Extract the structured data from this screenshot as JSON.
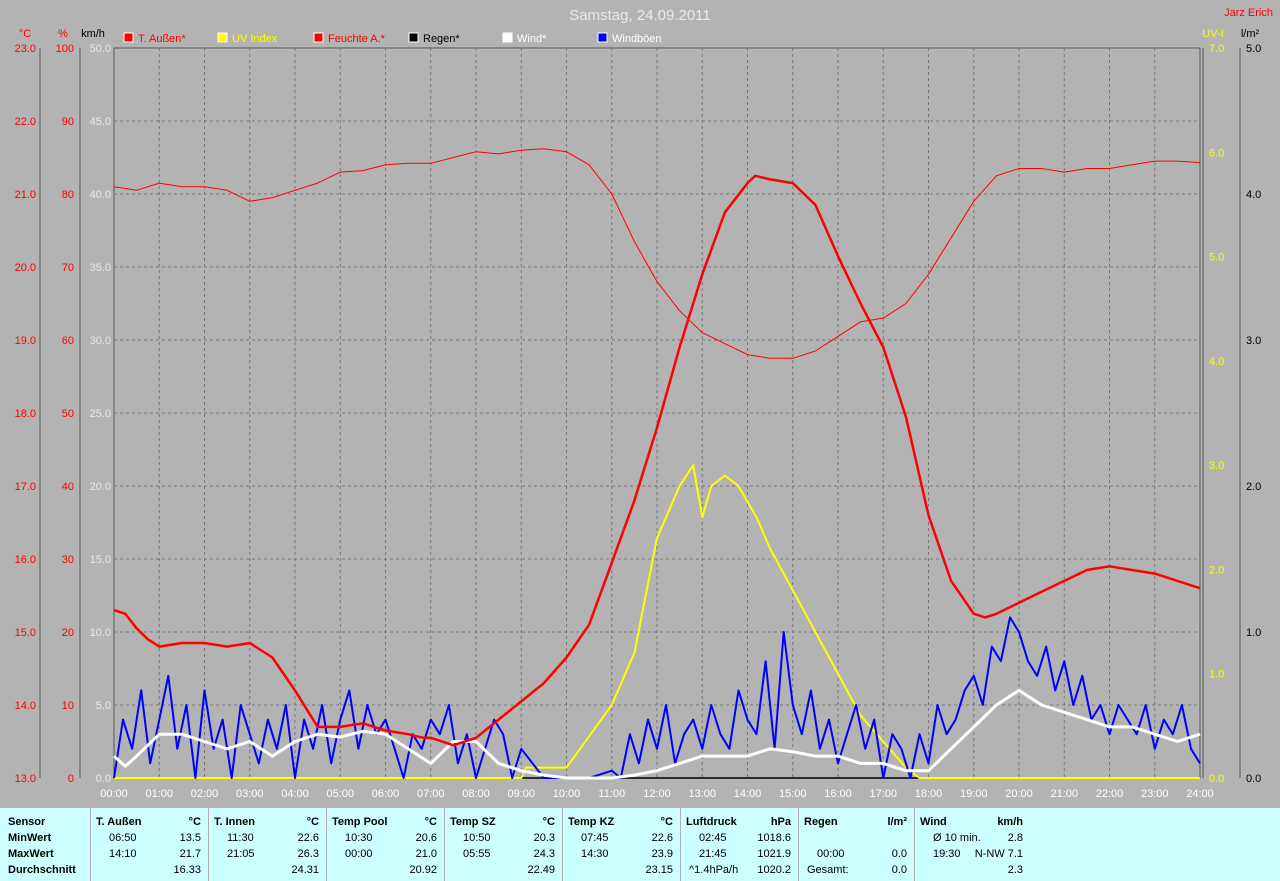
{
  "title": "Samstag, 24.09.2011",
  "author": "Jarz Erich",
  "colors": {
    "background": "#b3b3b3",
    "grid": "#777777",
    "temp": "#ff0000",
    "uv": "#ffff00",
    "rain": "#000000",
    "wind": "#ffffff",
    "gust": "#0000ff",
    "stats_bg": "#ccffff"
  },
  "axes": {
    "temp_unit": "°C",
    "humidity_unit": "%",
    "wind_unit": "km/h",
    "uv_unit": "UV-I",
    "rain_unit": "l/m²",
    "temp_ticks": [
      "23.0",
      "22.0",
      "21.0",
      "20.0",
      "19.0",
      "18.0",
      "17.0",
      "16.0",
      "15.0",
      "14.0",
      "13.0"
    ],
    "humidity_ticks": [
      "100",
      "90",
      "80",
      "70",
      "60",
      "50",
      "40",
      "30",
      "20",
      "10",
      "0"
    ],
    "wind_ticks": [
      "50.0",
      "45.0",
      "40.0",
      "35.0",
      "30.0",
      "25.0",
      "20.0",
      "15.0",
      "10.0",
      "5.0",
      "0.0"
    ],
    "uv_ticks": [
      "7.0",
      "6.0",
      "5.0",
      "4.0",
      "3.0",
      "2.0",
      "1.0",
      "0.0"
    ],
    "rain_ticks": [
      "5.0",
      "4.0",
      "3.0",
      "2.0",
      "1.0",
      "0.0"
    ],
    "time_ticks": [
      "00:00",
      "01:00",
      "02:00",
      "03:00",
      "04:00",
      "05:00",
      "06:00",
      "07:00",
      "08:00",
      "09:00",
      "10:00",
      "11:00",
      "12:00",
      "13:00",
      "14:00",
      "15:00",
      "16:00",
      "17:00",
      "18:00",
      "19:00",
      "20:00",
      "21:00",
      "22:00",
      "23:00",
      "24:00"
    ]
  },
  "legend": [
    {
      "label": "T. Außen*",
      "color": "#ff0000",
      "text_color": "#ff0000"
    },
    {
      "label": "UV Index",
      "color": "#ffff00",
      "text_color": "#ffff00"
    },
    {
      "label": "Feuchte A.*",
      "color": "#ff0000",
      "text_color": "#ff0000"
    },
    {
      "label": "Regen*",
      "color": "#000000",
      "text_color": "#000000"
    },
    {
      "label": "Wind*",
      "color": "#ffffff",
      "text_color": "#ffffff"
    },
    {
      "label": "Windböen",
      "color": "#0000ff",
      "text_color": "#ffffff"
    }
  ],
  "chart_data": {
    "type": "line",
    "title": "Samstag, 24.09.2011",
    "xlim": [
      0,
      24
    ],
    "grid": true,
    "legend_position": "top",
    "series": [
      {
        "name": "T. Außen*",
        "axis": "temp",
        "ylim": [
          13,
          23
        ],
        "x": [
          0,
          0.25,
          0.5,
          0.75,
          1,
          1.5,
          2,
          2.5,
          3,
          3.5,
          4,
          4.25,
          4.5,
          5,
          5.5,
          6,
          6.5,
          6.83,
          7,
          7.5,
          8,
          8.5,
          9,
          9.5,
          10,
          10.5,
          11,
          11.5,
          12,
          12.5,
          13,
          13.5,
          14,
          14.17,
          14.5,
          15,
          15.5,
          16,
          16.5,
          17,
          17.5,
          18,
          18.5,
          19,
          19.25,
          19.5,
          20,
          20.5,
          21,
          21.5,
          22,
          22.5,
          23,
          23.5,
          24
        ],
        "y": [
          15.3,
          15.25,
          15.05,
          14.9,
          14.8,
          14.85,
          14.85,
          14.8,
          14.85,
          14.65,
          14.2,
          13.95,
          13.7,
          13.7,
          13.75,
          13.65,
          13.6,
          13.55,
          13.55,
          13.45,
          13.55,
          13.8,
          14.05,
          14.3,
          14.65,
          15.1,
          15.95,
          16.8,
          17.8,
          18.9,
          19.9,
          20.75,
          21.15,
          21.25,
          21.2,
          21.15,
          20.85,
          20.15,
          19.5,
          18.9,
          17.95,
          16.6,
          15.7,
          15.25,
          15.2,
          15.25,
          15.4,
          15.55,
          15.7,
          15.85,
          15.9,
          15.85,
          15.8,
          15.7,
          15.6
        ]
      },
      {
        "name": "Feuchte A.*",
        "axis": "humidity",
        "ylim": [
          0,
          100
        ],
        "x": [
          0,
          0.5,
          1,
          1.5,
          2,
          2.5,
          3,
          3.5,
          4,
          4.5,
          5,
          5.5,
          6,
          6.5,
          7,
          7.5,
          8,
          8.5,
          9,
          9.5,
          10,
          10.5,
          11,
          11.5,
          12,
          12.5,
          13,
          13.5,
          14,
          14.5,
          15,
          15.5,
          16,
          16.5,
          17,
          17.5,
          18,
          18.5,
          19,
          19.5,
          20,
          20.5,
          21,
          21.5,
          22,
          22.5,
          23,
          23.5,
          24
        ],
        "y": [
          81,
          80.5,
          81.5,
          81,
          81,
          80.5,
          79,
          79.5,
          80.5,
          81.5,
          83,
          83.2,
          84,
          84.2,
          84.2,
          85,
          85.8,
          85.5,
          86,
          86.2,
          85.8,
          84,
          80,
          73.5,
          68,
          64,
          61,
          59.5,
          58,
          57.5,
          57.5,
          58.5,
          60.5,
          62.5,
          63,
          65,
          69,
          74,
          79,
          82.5,
          83.5,
          83.5,
          83,
          83.5,
          83.5,
          84,
          84.5,
          84.5,
          84.3
        ]
      },
      {
        "name": "UV Index",
        "axis": "uv",
        "ylim": [
          0,
          7
        ],
        "x": [
          0,
          9.0,
          9.1,
          10,
          10.5,
          11,
          11.5,
          12,
          12.5,
          12.8,
          13,
          13.2,
          13.5,
          13.8,
          14.2,
          14.5,
          15,
          15.5,
          16,
          16.5,
          17,
          17.5,
          17.8,
          24
        ],
        "y": [
          0,
          0,
          0.1,
          0.1,
          0.4,
          0.7,
          1.2,
          2.3,
          2.8,
          3.0,
          2.5,
          2.8,
          2.9,
          2.8,
          2.5,
          2.2,
          1.8,
          1.4,
          1.0,
          0.6,
          0.35,
          0.1,
          0,
          0
        ]
      },
      {
        "name": "Regen*",
        "axis": "rain",
        "ylim": [
          0,
          5
        ],
        "x": [
          0,
          24
        ],
        "y": [
          0,
          0
        ]
      },
      {
        "name": "Wind*",
        "axis": "wind",
        "ylim": [
          0,
          50
        ],
        "x": [
          0,
          0.25,
          0.5,
          1,
          1.5,
          2,
          2.5,
          3,
          3.5,
          4,
          4.5,
          5,
          5.5,
          6,
          6.5,
          7,
          7.5,
          8,
          8.5,
          9,
          9.5,
          10,
          10.5,
          11,
          11.5,
          12,
          12.5,
          13,
          13.5,
          14,
          14.5,
          15,
          15.5,
          16,
          16.5,
          17,
          17.5,
          18,
          18.5,
          19,
          19.5,
          20,
          20.5,
          21,
          21.5,
          22,
          22.5,
          23,
          23.5,
          24
        ],
        "y": [
          1.5,
          0.8,
          1.5,
          3.0,
          3.0,
          2.5,
          2.0,
          2.5,
          1.5,
          2.5,
          3.0,
          2.8,
          3.2,
          3.0,
          2.0,
          1.0,
          2.5,
          2.5,
          1.0,
          0.5,
          0.2,
          0,
          0,
          0,
          0.2,
          0.5,
          1.0,
          1.5,
          1.5,
          1.5,
          2.0,
          1.8,
          1.5,
          1.5,
          1.0,
          1.0,
          0.5,
          0.5,
          2.0,
          3.5,
          5.0,
          6.0,
          5.0,
          4.5,
          4.0,
          3.5,
          3.5,
          3.0,
          2.5,
          3.0
        ]
      },
      {
        "name": "Windböen",
        "axis": "wind",
        "ylim": [
          0,
          50
        ],
        "x": [
          0,
          0.2,
          0.4,
          0.6,
          0.8,
          1,
          1.2,
          1.4,
          1.6,
          1.8,
          2,
          2.2,
          2.4,
          2.6,
          2.8,
          3,
          3.2,
          3.4,
          3.6,
          3.8,
          4,
          4.2,
          4.4,
          4.6,
          4.8,
          5,
          5.2,
          5.4,
          5.6,
          5.8,
          6,
          6.2,
          6.4,
          6.6,
          6.8,
          7,
          7.2,
          7.4,
          7.6,
          7.8,
          8,
          8.2,
          8.4,
          8.6,
          8.8,
          9,
          9.5,
          10,
          10.5,
          11,
          11.2,
          11.4,
          11.6,
          11.8,
          12,
          12.2,
          12.4,
          12.6,
          12.8,
          13,
          13.2,
          13.4,
          13.6,
          13.8,
          14,
          14.2,
          14.4,
          14.6,
          14.8,
          15,
          15.2,
          15.4,
          15.6,
          15.8,
          16,
          16.2,
          16.4,
          16.6,
          16.8,
          17,
          17.2,
          17.4,
          17.6,
          17.8,
          18,
          18.2,
          18.4,
          18.6,
          18.8,
          19,
          19.2,
          19.4,
          19.6,
          19.8,
          20,
          20.2,
          20.4,
          20.6,
          20.8,
          21,
          21.2,
          21.4,
          21.6,
          21.8,
          22,
          22.2,
          22.4,
          22.6,
          22.8,
          23,
          23.2,
          23.4,
          23.6,
          23.8,
          24
        ],
        "y": [
          0,
          4,
          2,
          6,
          1,
          4,
          7,
          2,
          5,
          0,
          6,
          2,
          4,
          0,
          5,
          3,
          1,
          4,
          2,
          5,
          0,
          4,
          2,
          5,
          1,
          4,
          6,
          2,
          5,
          3,
          4,
          2,
          0,
          3,
          2,
          4,
          3,
          5,
          1,
          3,
          0,
          2,
          4,
          3,
          0,
          2,
          0,
          0,
          0,
          0.5,
          0,
          3,
          1,
          4,
          2,
          5,
          1,
          3,
          4,
          2,
          5,
          3,
          2,
          6,
          4,
          3,
          8,
          2,
          10,
          5,
          3,
          6,
          2,
          4,
          1,
          3,
          5,
          2,
          4,
          0,
          3,
          2,
          0,
          3,
          1,
          5,
          3,
          4,
          6,
          7,
          5,
          9,
          8,
          11,
          10,
          8,
          7,
          9,
          6,
          8,
          5,
          7,
          4,
          5,
          3,
          5,
          4,
          3,
          5,
          2,
          4,
          3,
          5,
          2,
          1
        ]
      }
    ]
  },
  "stats": {
    "labels": {
      "sensor": "Sensor",
      "min": "MinWert",
      "max": "MaxWert",
      "avg": "Durchschnitt"
    },
    "columns": [
      {
        "name": "T. Außen",
        "unit": "°C",
        "min_time": "06:50",
        "min_val": "13.5",
        "max_time": "14:10",
        "max_val": "21.7",
        "avg_label": "",
        "avg_val": "16.33"
      },
      {
        "name": "T. Innen",
        "unit": "°C",
        "min_time": "11:30",
        "min_val": "22.6",
        "max_time": "21:05",
        "max_val": "26.3",
        "avg_label": "",
        "avg_val": "24.31"
      },
      {
        "name": "Temp Pool",
        "unit": "°C",
        "min_time": "10:30",
        "min_val": "20.6",
        "max_time": "00:00",
        "max_val": "21.0",
        "avg_label": "",
        "avg_val": "20.92"
      },
      {
        "name": "Temp SZ",
        "unit": "°C",
        "min_time": "10:50",
        "min_val": "20.3",
        "max_time": "05:55",
        "max_val": "24.3",
        "avg_label": "",
        "avg_val": "22.49"
      },
      {
        "name": "Temp KZ",
        "unit": "°C",
        "min_time": "07:45",
        "min_val": "22.6",
        "max_time": "14:30",
        "max_val": "23.9",
        "avg_label": "",
        "avg_val": "23.15"
      },
      {
        "name": "Luftdruck",
        "unit": "hPa",
        "min_time": "02:45",
        "min_val": "1018.6",
        "max_time": "21:45",
        "max_val": "1021.9",
        "avg_label": "^1.4hPa/h",
        "avg_val": "1020.2"
      },
      {
        "name": "Regen",
        "unit": "l/m²",
        "min_time": "",
        "min_val": "",
        "max_time": "00:00",
        "max_val": "0.0",
        "avg_label": "Gesamt:",
        "avg_val": "0.0"
      },
      {
        "name": "Wind",
        "unit": "km/h",
        "min_time": "Ø 10 min.",
        "min_val": "2.8",
        "max_time": "19:30",
        "max_val": "N-NW 7.1",
        "avg_label": "",
        "avg_val": "2.3"
      }
    ]
  }
}
